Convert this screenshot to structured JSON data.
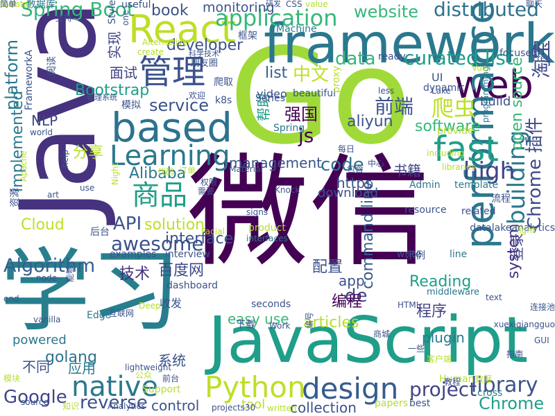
{
  "palette": [
    "#440154",
    "#482878",
    "#3e4989",
    "#31688e",
    "#26828e",
    "#1f9e89",
    "#35b779",
    "#6ece58",
    "#b5de2b",
    "#fde725"
  ],
  "words": [
    {
      "text": "Go",
      "color": "#a0da39"
    },
    {
      "text": "微信",
      "color": "#440154"
    },
    {
      "text": "JavaScript",
      "color": "#1f9e89"
    },
    {
      "text": "Java",
      "color": "#46327e"
    },
    {
      "text": "学习",
      "color": "#277f8e"
    },
    {
      "text": "framework",
      "color": "#2a788e"
    },
    {
      "text": "web",
      "color": "#440154"
    },
    {
      "text": "React",
      "color": "#bddf26"
    },
    {
      "text": "based",
      "color": "#2c728e"
    },
    {
      "text": "performance",
      "color": "#2a788e"
    },
    {
      "text": "fast",
      "color": "#1f9e89"
    },
    {
      "text": "Python",
      "color": "#bddf26"
    },
    {
      "text": "design",
      "color": "#365c8d"
    },
    {
      "text": "管理",
      "color": "#3b528b"
    },
    {
      "text": "Learning",
      "color": "#2a788e"
    },
    {
      "text": "商品",
      "color": "#1f9e89"
    },
    {
      "text": "native",
      "color": "#2a788e"
    },
    {
      "text": "application",
      "color": "#35b779"
    },
    {
      "text": "awesome",
      "color": "#3b528b"
    },
    {
      "text": "building",
      "color": "#2a788e"
    },
    {
      "text": "curated list",
      "color": "#1f9e89"
    },
    {
      "text": "project",
      "color": "#414487"
    },
    {
      "text": "Spring Boot",
      "color": "#35b779"
    },
    {
      "text": "distributed",
      "color": "#2c728e"
    },
    {
      "text": "website",
      "color": "#35b779"
    },
    {
      "text": "platform",
      "color": "#2a788e"
    },
    {
      "text": "Algorithm",
      "color": "#355f8d"
    },
    {
      "text": "爬虫",
      "color": "#bddf26"
    },
    {
      "text": "前端",
      "color": "#3b528b"
    },
    {
      "text": "high",
      "color": "#414487"
    },
    {
      "text": "library",
      "color": "#3b528b"
    },
    {
      "text": "Google",
      "color": "#414487"
    },
    {
      "text": "reverse",
      "color": "#3b528b"
    },
    {
      "text": "Chrome",
      "color": "#1f9e89"
    },
    {
      "text": "Chrome 插件",
      "color": "#3e4989"
    },
    {
      "text": "system",
      "color": "#46327e"
    },
    {
      "text": "淘宝",
      "color": "#3e4989"
    },
    {
      "text": "中文",
      "color": "#bddf26"
    },
    {
      "text": "software",
      "color": "#35b779"
    },
    {
      "text": "open source",
      "color": "#35b779"
    },
    {
      "text": "data",
      "color": "#35b779"
    },
    {
      "text": "list",
      "color": "#355f8d"
    },
    {
      "text": "service",
      "color": "#3b528b"
    },
    {
      "text": "implemented",
      "color": "#2a788e"
    },
    {
      "text": "Cloud",
      "color": "#bddf26"
    },
    {
      "text": "solution",
      "color": "#bddf26"
    },
    {
      "text": "API",
      "color": "#3b528b"
    },
    {
      "text": "interface",
      "color": "#3b528b"
    },
    {
      "text": "code",
      "color": "#2c728e"
    },
    {
      "text": "management",
      "color": "#3b528b"
    },
    {
      "text": "aliyun",
      "color": "#3b528b"
    },
    {
      "text": "强国",
      "color": "#440154"
    },
    {
      "text": "Bootstrap",
      "color": "#1f9e89"
    },
    {
      "text": "developer",
      "color": "#3b528b"
    },
    {
      "text": "book",
      "color": "#3b528b"
    },
    {
      "text": "monitoring",
      "color": "#3b528b"
    },
    {
      "text": "实现",
      "color": "#414487"
    },
    {
      "text": "面试",
      "color": "#414487"
    },
    {
      "text": "分享",
      "color": "#b5de2b"
    },
    {
      "text": "NLP",
      "color": "#3e4989"
    },
    {
      "text": "Alibaba",
      "color": "#2a788e"
    },
    {
      "text": "https",
      "color": "#3b528b"
    },
    {
      "text": "download",
      "color": "#3b528b"
    },
    {
      "text": "技术",
      "color": "#46327e"
    },
    {
      "text": "百度网",
      "color": "#3e4989"
    },
    {
      "text": "app",
      "color": "#3b528b"
    },
    {
      "text": "de",
      "color": "#414487"
    },
    {
      "text": "Reading",
      "color": "#1f9e89"
    },
    {
      "text": "command line",
      "color": "#365c8d"
    },
    {
      "text": "编程",
      "color": "#440154"
    },
    {
      "text": "配置",
      "color": "#3b528b"
    },
    {
      "text": "登录",
      "color": "#414487"
    },
    {
      "text": "程序",
      "color": "#414487"
    },
    {
      "text": "plugin",
      "color": "#2a788e"
    },
    {
      "text": "articles",
      "color": "#b5de2b"
    },
    {
      "text": "easy use",
      "color": "#35b779"
    },
    {
      "text": "golang",
      "color": "#2c728e"
    },
    {
      "text": "powered",
      "color": "#2a788e"
    },
    {
      "text": "不同",
      "color": "#3b528b"
    },
    {
      "text": "应用",
      "color": "#2a788e"
    },
    {
      "text": "系统",
      "color": "#3b528b"
    },
    {
      "text": "control",
      "color": "#3b528b"
    },
    {
      "text": "tool",
      "color": "#b5de2b"
    },
    {
      "text": "collection",
      "color": "#3b528b"
    },
    {
      "text": "书籍",
      "color": "#414487"
    },
    {
      "text": "build",
      "color": "#3b528b"
    },
    {
      "text": "video",
      "color": "#3b528b"
    },
    {
      "text": "UI",
      "color": "#3b528b"
    },
    {
      "text": "帮助",
      "color": "#1f9e89"
    },
    {
      "text": "js",
      "color": "#440154"
    },
    {
      "text": "template",
      "color": "#2a788e"
    },
    {
      "text": "Admin",
      "color": "#2a788e"
    },
    {
      "text": "resource",
      "color": "#3b528b"
    },
    {
      "text": "related",
      "color": "#3b528b"
    },
    {
      "text": "流程",
      "color": "#3b528b"
    },
    {
      "text": "datalakeanalytics",
      "color": "#3b528b"
    },
    {
      "text": "Support",
      "color": "#b5de2b"
    },
    {
      "text": "Human",
      "color": "#b5de2b"
    },
    {
      "text": "best",
      "color": "#3b528b"
    },
    {
      "text": "papers",
      "color": "#b5de2b"
    },
    {
      "text": "cross",
      "color": "#2a788e"
    },
    {
      "text": "后台",
      "color": "#3b528b"
    },
    {
      "text": "examples",
      "color": "#3b528b"
    },
    {
      "text": "interview",
      "color": "#3b528b"
    },
    {
      "text": "dashboard",
      "color": "#3b528b"
    },
    {
      "text": "Edge",
      "color": "#2a788e"
    },
    {
      "text": "收发",
      "color": "#3b528b"
    },
    {
      "text": "下载",
      "color": "#3b528b"
    },
    {
      "text": "seconds",
      "color": "#3b528b"
    },
    {
      "text": "middleware",
      "color": "#2a788e"
    },
    {
      "text": "示例",
      "color": "#3b528b"
    },
    {
      "text": "write",
      "color": "#3b528b"
    },
    {
      "text": "line",
      "color": "#2a788e"
    },
    {
      "text": "Series",
      "color": "#3b528b"
    },
    {
      "text": "Spring",
      "color": "#2a788e"
    },
    {
      "text": "beautiful",
      "color": "#3b528b"
    },
    {
      "text": "proxy",
      "color": "#b5de2b"
    },
    {
      "text": "k8s",
      "color": "#3b528b"
    },
    {
      "text": "模拟",
      "color": "#3b528b"
    },
    {
      "text": "管理系统",
      "color": "#3b528b"
    },
    {
      "text": "阅读",
      "color": "#3b528b"
    },
    {
      "text": "FrameworkA",
      "color": "#3b528b"
    },
    {
      "text": "数据库",
      "color": "#2a788e"
    },
    {
      "text": "useful",
      "color": "#3b528b"
    },
    {
      "text": "研发",
      "color": "#3b528b"
    },
    {
      "text": "CSS",
      "color": "#3b528b"
    },
    {
      "text": "value",
      "color": "#b5de2b"
    },
    {
      "text": "框架",
      "color": "#3b528b"
    },
    {
      "text": "Machine",
      "color": "#2a788e"
    },
    {
      "text": "朋友圈",
      "color": "#3b528b"
    },
    {
      "text": "爬取",
      "color": "#3b528b"
    },
    {
      "text": "ready",
      "color": "#3b528b"
    },
    {
      "text": "focused",
      "color": "#3b528b"
    },
    {
      "text": "Free",
      "color": "#3b528b"
    },
    {
      "text": "Lake",
      "color": "#3b528b"
    },
    {
      "text": "dynamic",
      "color": "#3b528b"
    },
    {
      "text": "less",
      "color": "#3b528b"
    },
    {
      "text": "programming",
      "color": "#2a788e"
    },
    {
      "text": "provide",
      "color": "#b5de2b"
    },
    {
      "text": "including",
      "color": "#b5de2b"
    },
    {
      "text": "libraries",
      "color": "#b5de2b"
    },
    {
      "text": "中心",
      "color": "#3b528b"
    },
    {
      "text": "每日",
      "color": "#3b528b"
    },
    {
      "text": "包含",
      "color": "#3b528b"
    },
    {
      "text": "Material",
      "color": "#3b528b"
    },
    {
      "text": "Knock",
      "color": "#3b528b"
    },
    {
      "text": "订单",
      "color": "#b5de2b"
    },
    {
      "text": "代码",
      "color": "#b5de2b"
    },
    {
      "text": "权限",
      "color": "#3b528b"
    },
    {
      "text": "需要",
      "color": "#3b528b"
    },
    {
      "text": "product",
      "color": "#b5de2b"
    },
    {
      "text": "interfaces",
      "color": "#2a788e"
    },
    {
      "text": "Facial",
      "color": "#b5de2b"
    },
    {
      "text": "Night",
      "color": "#b5de2b"
    },
    {
      "text": "help",
      "color": "#3b528b"
    },
    {
      "text": "Apache",
      "color": "#b5de2b"
    },
    {
      "text": "use",
      "color": "#3b528b"
    },
    {
      "text": "art",
      "color": "#3b528b"
    },
    {
      "text": "signs",
      "color": "#3b528b"
    },
    {
      "text": "资源",
      "color": "#3b528b"
    },
    {
      "text": "node",
      "color": "#3b528b"
    },
    {
      "text": "能够",
      "color": "#3b528b"
    },
    {
      "text": "end",
      "color": "#3b528b"
    },
    {
      "text": "Deep",
      "color": "#b5de2b"
    },
    {
      "text": "vanilla",
      "color": "#3b528b"
    },
    {
      "text": "互联网",
      "color": "#3b528b"
    },
    {
      "text": "lightweight",
      "color": "#3b528b"
    },
    {
      "text": "公众",
      "color": "#b5de2b"
    },
    {
      "text": "前台",
      "color": "#3b528b"
    },
    {
      "text": "模块",
      "color": "#b5de2b"
    },
    {
      "text": "source",
      "color": "#3b528b"
    },
    {
      "text": "知识",
      "color": "#b5de2b"
    },
    {
      "text": "Analytics",
      "color": "#3b528b"
    },
    {
      "text": "projects30",
      "color": "#3b528b"
    },
    {
      "text": "written",
      "color": "#b5de2b"
    },
    {
      "text": "Work",
      "color": "#3b528b"
    },
    {
      "text": "编号",
      "color": "#3b528b"
    },
    {
      "text": "商城",
      "color": "#3b528b"
    },
    {
      "text": "HTML",
      "color": "#3b528b"
    },
    {
      "text": "一些",
      "color": "#3b528b"
    },
    {
      "text": "客户端",
      "color": "#b5de2b"
    },
    {
      "text": "教程",
      "color": "#3b528b"
    },
    {
      "text": "数据",
      "color": "#b5de2b"
    },
    {
      "text": "指南",
      "color": "#3b528b"
    },
    {
      "text": "xuexiqiangguo",
      "color": "#3b528b"
    },
    {
      "text": "连接池",
      "color": "#3b528b"
    },
    {
      "text": "text",
      "color": "#3b528b"
    },
    {
      "text": "light",
      "color": "#b5de2b"
    },
    {
      "text": "GUI",
      "color": "#3b528b"
    },
    {
      "text": "Vue",
      "color": "#b5de2b"
    },
    {
      "text": "聊天",
      "color": "#3b528b"
    },
    {
      "text": "Alternative",
      "color": "#b5de2b"
    },
    {
      "text": "one",
      "color": "#3b528b"
    },
    {
      "text": "create",
      "color": "#b5de2b"
    },
    {
      "text": "Style",
      "color": "#3b528b"
    },
    {
      "text": "支持",
      "color": "#3b528b"
    },
    {
      "text": "欢迎",
      "color": "#3b528b"
    },
    {
      "text": "科学技术",
      "color": "#3b528b"
    },
    {
      "text": "world",
      "color": "#3b528b"
    },
    {
      "text": "toolstar",
      "color": "#b5de2b"
    },
    {
      "text": "简单",
      "color": "#3b528b"
    }
  ]
}
